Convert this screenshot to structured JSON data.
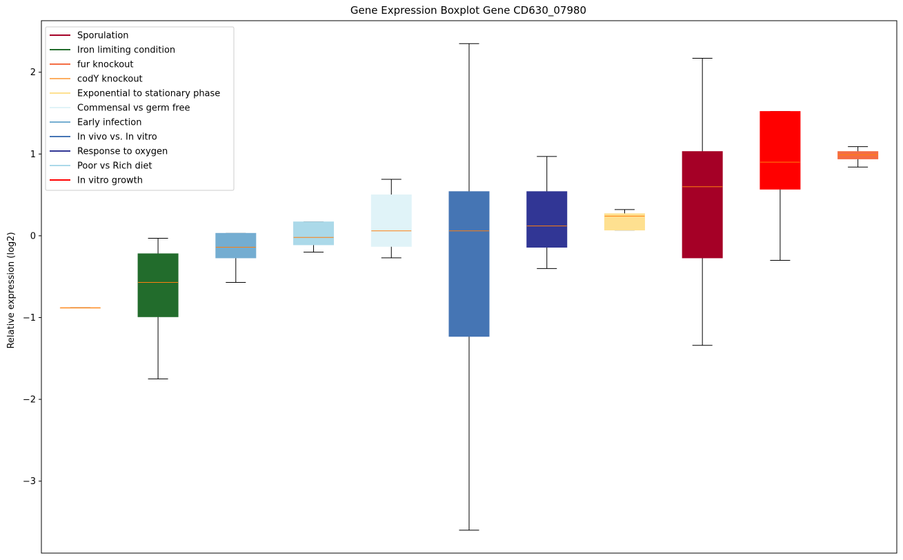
{
  "chart_data": {
    "type": "boxplot",
    "title": "Gene Expression Boxplot Gene CD630_07980",
    "xlabel": "",
    "ylabel": "Relative expression (log2)",
    "ylim": [
      -3.88,
      2.63
    ],
    "yticks": [
      -3,
      -2,
      -1,
      0,
      1,
      2
    ],
    "ytick_labels": [
      "−3",
      "−2",
      "−1",
      "0",
      "1",
      "2"
    ],
    "legend": {
      "placement": "top-left",
      "entries": [
        {
          "label": "Sporulation",
          "color": "#a50026"
        },
        {
          "label": "Iron limiting condition",
          "color": "#226c2c"
        },
        {
          "label": "fur knockout",
          "color": "#f46d43"
        },
        {
          "label": "codY knockout",
          "color": "#fdae61"
        },
        {
          "label": "Exponential to stationary phase",
          "color": "#fee090"
        },
        {
          "label": "Commensal vs germ free",
          "color": "#e0f3f8"
        },
        {
          "label": "Early infection",
          "color": "#74add1"
        },
        {
          "label": "In vivo vs. In vitro",
          "color": "#4575b4"
        },
        {
          "label": "Response to oxygen",
          "color": "#313695"
        },
        {
          "label": "Poor vs Rich diet",
          "color": "#abd9e9"
        },
        {
          "label": "In vitro growth",
          "color": "#ff0000"
        }
      ]
    },
    "median_color": "#ff7f0e",
    "boxes": [
      {
        "position": 1,
        "color": "#fdae61",
        "whisker_low": -0.88,
        "q1": -0.88,
        "median": -0.88,
        "q3": -0.88,
        "whisker_high": -0.88
      },
      {
        "position": 2,
        "color": "#226c2c",
        "whisker_low": -1.75,
        "q1": -0.99,
        "median": -0.57,
        "q3": -0.22,
        "whisker_high": -0.03
      },
      {
        "position": 3,
        "color": "#74add1",
        "whisker_low": -0.57,
        "q1": -0.27,
        "median": -0.14,
        "q3": 0.03,
        "whisker_high": 0.03
      },
      {
        "position": 4,
        "color": "#abd9e9",
        "whisker_low": -0.2,
        "q1": -0.11,
        "median": -0.02,
        "q3": 0.17,
        "whisker_high": 0.17
      },
      {
        "position": 5,
        "color": "#e0f3f8",
        "whisker_low": -0.27,
        "q1": -0.13,
        "median": 0.06,
        "q3": 0.5,
        "whisker_high": 0.69
      },
      {
        "position": 6,
        "color": "#4575b4",
        "whisker_low": -3.6,
        "q1": -1.23,
        "median": 0.06,
        "q3": 0.54,
        "whisker_high": 2.35
      },
      {
        "position": 7,
        "color": "#313695",
        "whisker_low": -0.4,
        "q1": -0.14,
        "median": 0.12,
        "q3": 0.54,
        "whisker_high": 0.97
      },
      {
        "position": 8,
        "color": "#fee090",
        "whisker_low": 0.07,
        "q1": 0.07,
        "median": 0.24,
        "q3": 0.27,
        "whisker_high": 0.32
      },
      {
        "position": 9,
        "color": "#a50026",
        "whisker_low": -1.34,
        "q1": -0.27,
        "median": 0.6,
        "q3": 1.03,
        "whisker_high": 2.17
      },
      {
        "position": 10,
        "color": "#ff0000",
        "whisker_low": -0.3,
        "q1": 0.57,
        "median": 0.9,
        "q3": 1.52,
        "whisker_high": 1.52
      },
      {
        "position": 11,
        "color": "#f46d43",
        "whisker_low": 0.84,
        "q1": 0.94,
        "median": 0.99,
        "q3": 1.03,
        "whisker_high": 1.09
      }
    ]
  }
}
